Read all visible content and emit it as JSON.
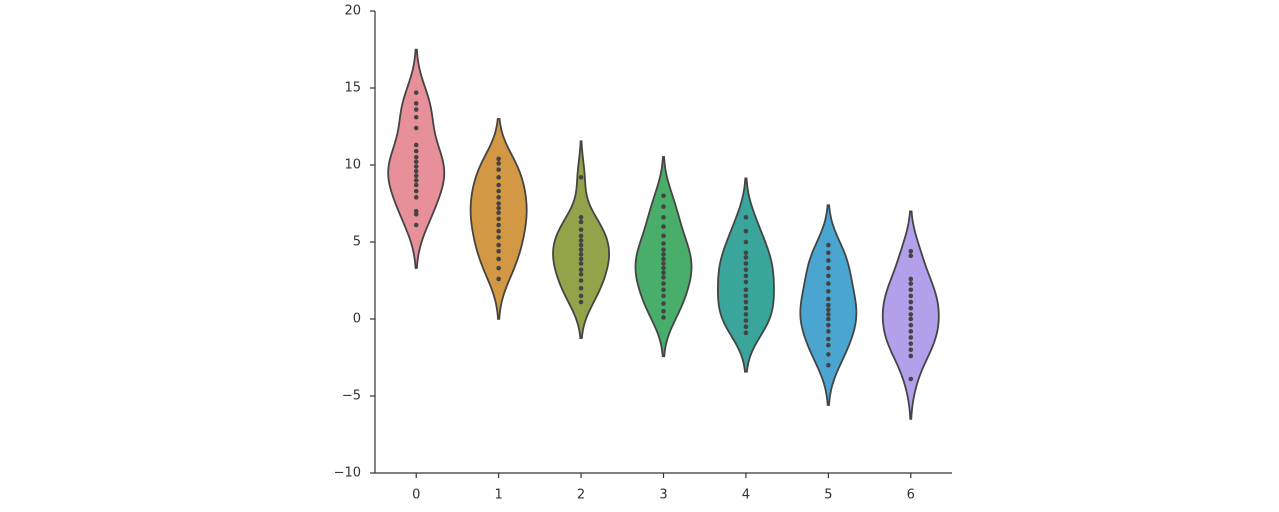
{
  "chart_data": {
    "type": "violin",
    "categories": [
      "0",
      "1",
      "2",
      "3",
      "4",
      "5",
      "6"
    ],
    "colors": [
      "#e8909a",
      "#d39843",
      "#93a34a",
      "#4aae6b",
      "#3aa59b",
      "#4aa6d0",
      "#b3a0ea"
    ],
    "values": [
      [
        6.1,
        6.8,
        7.0,
        7.9,
        8.3,
        8.7,
        9.0,
        9.3,
        9.6,
        9.9,
        10.2,
        10.5,
        10.9,
        11.3,
        12.4,
        13.1,
        13.6,
        14.0,
        14.7
      ],
      [
        2.6,
        3.3,
        3.9,
        4.4,
        4.8,
        5.3,
        5.7,
        6.1,
        6.5,
        6.9,
        7.2,
        7.5,
        7.9,
        8.3,
        8.7,
        9.2,
        9.7,
        10.1,
        10.4
      ],
      [
        1.1,
        1.5,
        2.0,
        2.5,
        2.9,
        3.2,
        3.6,
        3.9,
        4.2,
        4.5,
        4.8,
        5.1,
        5.4,
        5.8,
        6.3,
        6.6,
        9.2
      ],
      [
        0.1,
        0.5,
        1.0,
        1.5,
        1.9,
        2.3,
        2.7,
        3.0,
        3.3,
        3.6,
        3.9,
        4.2,
        4.5,
        4.9,
        5.4,
        6.0,
        6.6,
        7.3,
        8.0
      ],
      [
        -0.9,
        -0.5,
        -0.1,
        0.3,
        0.7,
        1.1,
        1.5,
        1.9,
        2.4,
        2.8,
        3.2,
        3.6,
        4.0,
        4.3,
        5.0,
        5.7,
        6.6
      ],
      [
        -3.0,
        -2.3,
        -1.7,
        -1.3,
        -0.8,
        -0.4,
        0.0,
        0.3,
        0.6,
        0.9,
        1.3,
        1.8,
        2.3,
        2.8,
        3.3,
        3.8,
        4.3,
        4.8
      ],
      [
        -3.9,
        -2.4,
        -2.0,
        -1.6,
        -1.2,
        -0.8,
        -0.4,
        0.0,
        0.3,
        0.7,
        1.1,
        1.5,
        1.9,
        2.3,
        2.6,
        4.1,
        4.4
      ]
    ],
    "ylim": [
      -10,
      20
    ],
    "yticks": [
      {
        "value": -10,
        "label": "−10"
      },
      {
        "value": -5,
        "label": "−5"
      },
      0,
      5,
      10,
      15,
      20
    ]
  }
}
